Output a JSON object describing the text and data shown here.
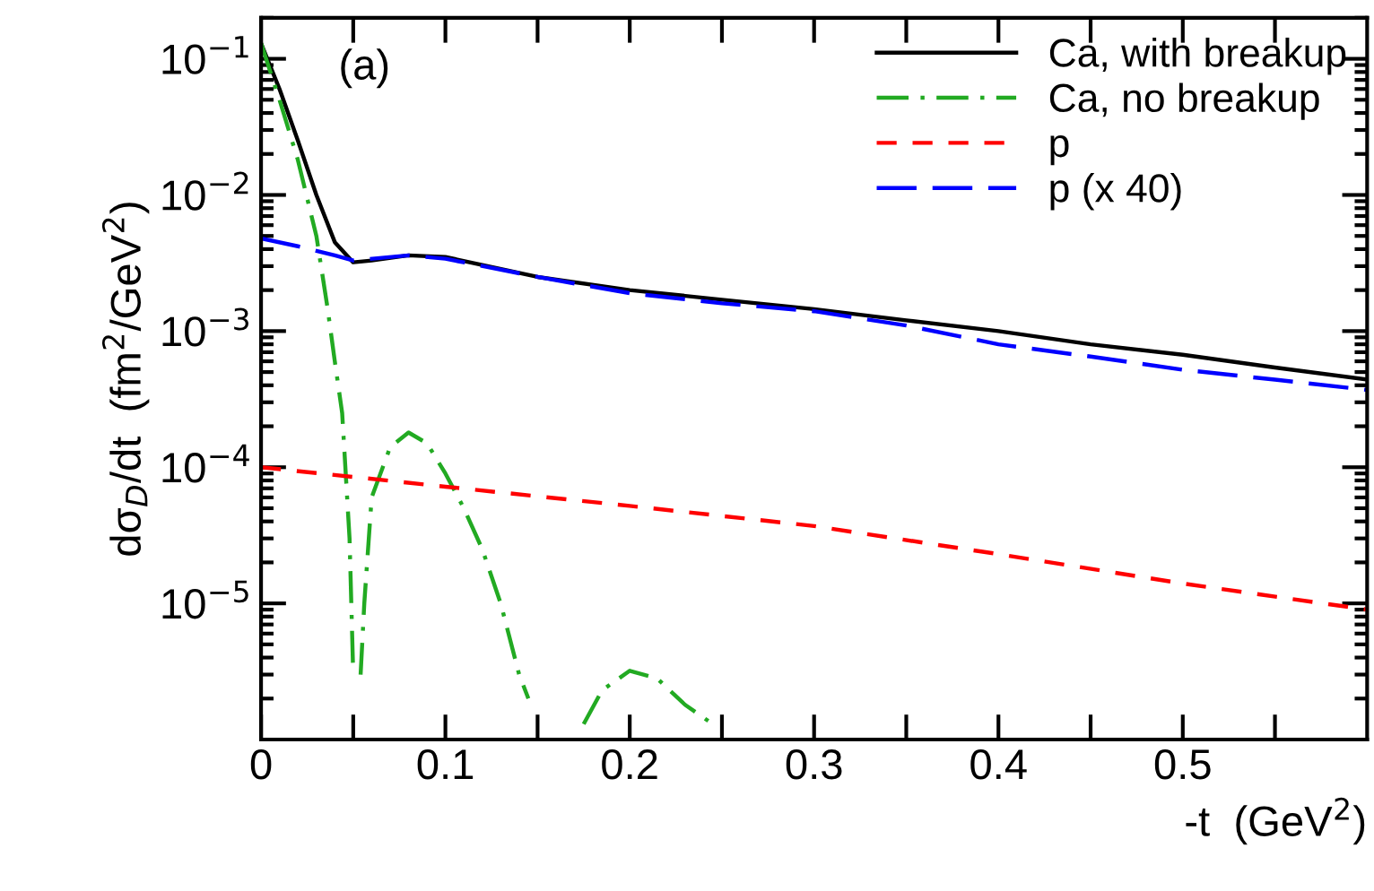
{
  "chart_data": {
    "type": "line",
    "xlabel": "-t  (GeV$^{2}$)",
    "ylabel": "dσ$_{D}$/dt  (fm$^{2}$/GeV$^{2}$)",
    "annotations": [
      "(a)"
    ],
    "log": "y",
    "xlim": [
      0,
      0.6
    ],
    "ylim": [
      1e-06,
      0.2
    ],
    "xticks": [
      0,
      0.1,
      0.2,
      0.3,
      0.4,
      0.5,
      {
        "value": 0.05,
        "label": null
      },
      {
        "value": 0.15,
        "label": null
      },
      {
        "value": 0.25,
        "label": null
      },
      {
        "value": 0.35,
        "label": null
      },
      {
        "value": 0.45,
        "label": null
      },
      {
        "value": 0.55,
        "label": null
      }
    ],
    "yticks": [
      {
        "value": 0.1,
        "label": "10$^{−1}$"
      },
      {
        "value": 0.01,
        "label": "10$^{−2}$"
      },
      {
        "value": 0.001,
        "label": "10$^{−3}$"
      },
      {
        "value": 0.0001,
        "label": "10$^{−4}$"
      },
      {
        "value": 1e-05,
        "label": "10$^{−5}$"
      }
    ],
    "legend": "top right",
    "grid": false,
    "marker": "none",
    "series": [
      {
        "name": "Ca, with breakup",
        "color": "#000000",
        "line_style": "solid",
        "x": [
          0,
          0.01,
          0.02,
          0.03,
          0.04,
          0.05,
          0.06,
          0.08,
          0.1,
          0.15,
          0.2,
          0.25,
          0.3,
          0.35,
          0.4,
          0.45,
          0.5,
          0.55,
          0.6
        ],
        "values": [
          0.13,
          0.06,
          0.025,
          0.01,
          0.0045,
          0.0032,
          0.0033,
          0.0036,
          0.0035,
          0.0025,
          0.002,
          0.0017,
          0.00145,
          0.0012,
          0.001,
          0.0008,
          0.00067,
          0.00054,
          0.00044
        ]
      },
      {
        "name": "Ca, no breakup",
        "color": "#22aa22",
        "line_style": "dashdot",
        "x": [
          0,
          0.01,
          0.02,
          0.03,
          0.036,
          0.04,
          0.044,
          0.048,
          0.05,
          0.052,
          0.054,
          0.056,
          0.06,
          0.07,
          0.08,
          0.09,
          0.1,
          0.11,
          0.12,
          0.13,
          0.14,
          0.145,
          0.16,
          0.175,
          0.185,
          0.2,
          0.215,
          0.23,
          0.245
        ],
        "values": [
          0.13,
          0.05,
          0.018,
          0.005,
          0.0015,
          0.0006,
          0.00025,
          3e-05,
          3e-06,
          null,
          3e-06,
          1e-05,
          6e-05,
          0.00014,
          0.00018,
          0.00015,
          9e-05,
          5e-05,
          2.5e-05,
          1e-05,
          3e-06,
          2e-06,
          null,
          1.3e-06,
          2.3e-06,
          3.2e-06,
          2.8e-06,
          1.8e-06,
          1.3e-06
        ]
      },
      {
        "name": "p",
        "color": "#ff0000",
        "line_style": "dashed",
        "x": [
          0,
          0.1,
          0.2,
          0.3,
          0.4,
          0.5,
          0.6
        ],
        "values": [
          0.0001,
          7.2e-05,
          5.2e-05,
          3.7e-05,
          2.3e-05,
          1.4e-05,
          9e-06
        ]
      },
      {
        "name": "p (x 40)",
        "color": "#0000ff",
        "line_style": "longdash",
        "x": [
          0,
          0.02,
          0.04,
          0.05,
          0.08,
          0.1,
          0.15,
          0.2,
          0.25,
          0.3,
          0.35,
          0.4,
          0.45,
          0.5,
          0.55,
          0.6
        ],
        "values": [
          0.0048,
          0.0042,
          0.0036,
          0.0033,
          0.0036,
          0.0034,
          0.0025,
          0.0019,
          0.0016,
          0.0014,
          0.0011,
          0.0008,
          0.00065,
          0.00052,
          0.00044,
          0.00037
        ]
      }
    ]
  }
}
